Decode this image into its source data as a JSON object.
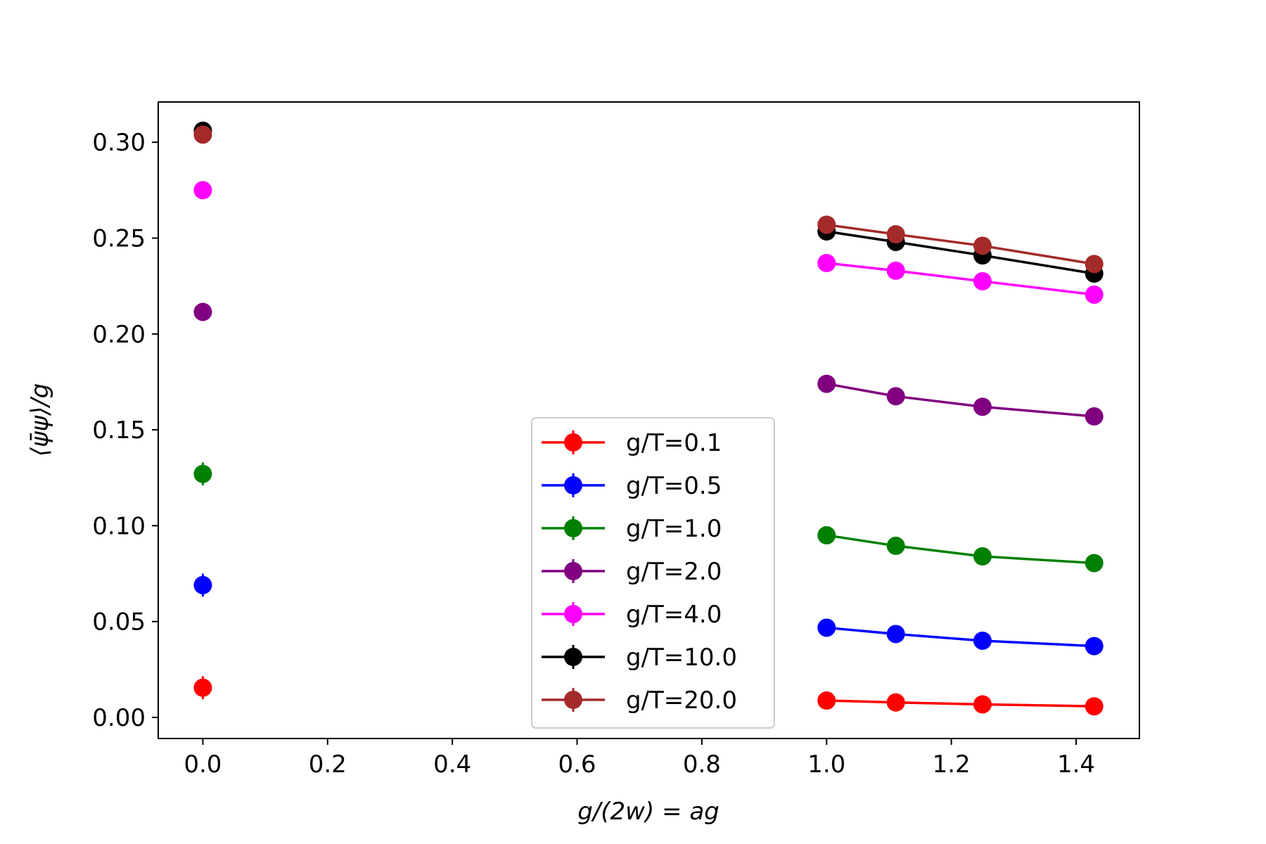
{
  "chart_data": {
    "type": "scatter",
    "xlabel": "g/(2w) = ag",
    "ylabel": "⟨ψ̄ψ⟩/g",
    "xlim": [
      -0.0715,
      1.5015
    ],
    "ylim": [
      -0.011,
      0.321
    ],
    "xticks": [
      0.0,
      0.2,
      0.4,
      0.6,
      0.8,
      1.0,
      1.2,
      1.4
    ],
    "xtick_labels": [
      "0.0",
      "0.2",
      "0.4",
      "0.6",
      "0.8",
      "1.0",
      "1.2",
      "1.4"
    ],
    "yticks": [
      0.0,
      0.05,
      0.1,
      0.15,
      0.2,
      0.25,
      0.3
    ],
    "ytick_labels": [
      "0.00",
      "0.05",
      "0.10",
      "0.15",
      "0.20",
      "0.25",
      "0.30"
    ],
    "grid": false,
    "legend_position": "lower-center",
    "series": [
      {
        "name": "g/T=0.1",
        "color": "#ff0000",
        "extrapolated": {
          "x": 0.0,
          "y": 0.0155,
          "err": 0.006
        },
        "x": [
          1.0,
          1.111,
          1.25,
          1.429
        ],
        "y": [
          0.0088,
          0.0078,
          0.0068,
          0.0058
        ]
      },
      {
        "name": "g/T=0.5",
        "color": "#0000ff",
        "extrapolated": {
          "x": 0.0,
          "y": 0.069,
          "err": 0.006
        },
        "x": [
          1.0,
          1.111,
          1.25,
          1.429
        ],
        "y": [
          0.0468,
          0.0435,
          0.04,
          0.0372
        ]
      },
      {
        "name": "g/T=1.0",
        "color": "#008000",
        "extrapolated": {
          "x": 0.0,
          "y": 0.127,
          "err": 0.006
        },
        "x": [
          1.0,
          1.111,
          1.25,
          1.429
        ],
        "y": [
          0.095,
          0.0895,
          0.084,
          0.0805
        ]
      },
      {
        "name": "g/T=2.0",
        "color": "#800080",
        "extrapolated": {
          "x": 0.0,
          "y": 0.2115,
          "err": 0.004
        },
        "x": [
          1.0,
          1.111,
          1.25,
          1.429
        ],
        "y": [
          0.174,
          0.1675,
          0.162,
          0.157
        ]
      },
      {
        "name": "g/T=4.0",
        "color": "#ff00ff",
        "extrapolated": {
          "x": 0.0,
          "y": 0.275,
          "err": 0.002
        },
        "x": [
          1.0,
          1.111,
          1.25,
          1.429
        ],
        "y": [
          0.237,
          0.233,
          0.2275,
          0.2205
        ]
      },
      {
        "name": "g/T=10.0",
        "color": "#000000",
        "extrapolated": {
          "x": 0.0,
          "y": 0.306,
          "err": 0.002
        },
        "x": [
          1.0,
          1.111,
          1.25,
          1.429
        ],
        "y": [
          0.2535,
          0.248,
          0.241,
          0.2315
        ]
      },
      {
        "name": "g/T=20.0",
        "color": "#a52a2a",
        "extrapolated": {
          "x": 0.0,
          "y": 0.304,
          "err": 0.002
        },
        "x": [
          1.0,
          1.111,
          1.25,
          1.429
        ],
        "y": [
          0.257,
          0.252,
          0.246,
          0.2365
        ]
      }
    ]
  }
}
